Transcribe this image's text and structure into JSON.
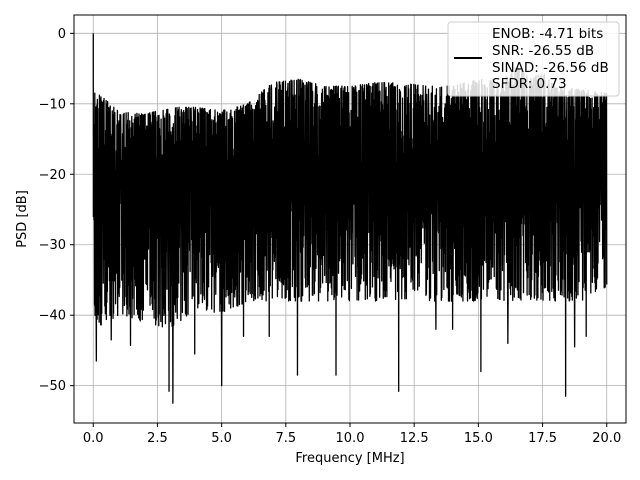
{
  "chart_data": {
    "type": "line",
    "title": "",
    "xlabel": "Frequency [MHz]",
    "ylabel": "PSD [dB]",
    "xlim": [
      -0.75,
      20.75
    ],
    "ylim": [
      -55.3,
      2.6
    ],
    "xticks": [
      0.0,
      2.5,
      5.0,
      7.5,
      10.0,
      12.5,
      15.0,
      17.5,
      20.0
    ],
    "xtick_labels": [
      "0.0",
      "2.5",
      "5.0",
      "7.5",
      "10.0",
      "12.5",
      "15.0",
      "17.5",
      "20.0"
    ],
    "yticks": [
      0,
      -10,
      -20,
      -30,
      -40,
      -50
    ],
    "ytick_labels": [
      "0",
      "−10",
      "−20",
      "−30",
      "−40",
      "−50"
    ],
    "grid": true,
    "legend_position": "top-right",
    "series": [
      {
        "name": "ENOB: -4.71 bits\nSNR: -26.55 dB\nSINAD: -26.56 dB\nSFDR: 0.73",
        "color": "#000000",
        "x_range": [
          0.0,
          20.0
        ],
        "spike_at_dc": 0.0,
        "upper_envelope": [
          [
            0.0,
            -8
          ],
          [
            1.0,
            -11
          ],
          [
            2.0,
            -11.5
          ],
          [
            3.0,
            -10.5
          ],
          [
            4.0,
            -10.5
          ],
          [
            5.0,
            -11
          ],
          [
            6.0,
            -10
          ],
          [
            7.0,
            -7
          ],
          [
            8.0,
            -6.5
          ],
          [
            9.0,
            -7.5
          ],
          [
            10.0,
            -7.5
          ],
          [
            11.0,
            -7
          ],
          [
            12.0,
            -7
          ],
          [
            13.0,
            -7.5
          ],
          [
            14.0,
            -7.5
          ],
          [
            15.0,
            -6.5
          ],
          [
            16.0,
            -6.5
          ],
          [
            16.5,
            -4.5
          ],
          [
            17.0,
            -6.5
          ],
          [
            17.5,
            -5.5
          ],
          [
            18.0,
            -7.5
          ],
          [
            19.0,
            -8
          ],
          [
            20.0,
            -8.5
          ]
        ],
        "lower_envelope": [
          [
            0.0,
            -42
          ],
          [
            1.0,
            -40
          ],
          [
            2.0,
            -41
          ],
          [
            3.0,
            -42
          ],
          [
            4.0,
            -39
          ],
          [
            5.0,
            -40
          ],
          [
            6.0,
            -38
          ],
          [
            7.0,
            -38
          ],
          [
            8.0,
            -38
          ],
          [
            9.0,
            -38
          ],
          [
            10.0,
            -38
          ],
          [
            11.0,
            -38
          ],
          [
            12.0,
            -38
          ],
          [
            13.0,
            -38
          ],
          [
            14.0,
            -38
          ],
          [
            15.0,
            -38
          ],
          [
            16.0,
            -38
          ],
          [
            17.0,
            -38
          ],
          [
            18.0,
            -38
          ],
          [
            19.0,
            -38
          ],
          [
            20.0,
            -36
          ]
        ],
        "deep_dips": [
          [
            0.12,
            -46.5
          ],
          [
            0.7,
            -43.5
          ],
          [
            1.45,
            -44.3
          ],
          [
            2.95,
            -50.8
          ],
          [
            3.1,
            -52.5
          ],
          [
            3.95,
            -45.5
          ],
          [
            5.0,
            -50
          ],
          [
            5.85,
            -43
          ],
          [
            6.85,
            -43
          ],
          [
            7.95,
            -48.5
          ],
          [
            9.45,
            -48.5
          ],
          [
            11.9,
            -50.8
          ],
          [
            13.35,
            -42
          ],
          [
            14.0,
            -42
          ],
          [
            15.1,
            -48
          ],
          [
            16.15,
            -44
          ],
          [
            18.4,
            -51.5
          ],
          [
            18.75,
            -44.5
          ],
          [
            19.2,
            -43
          ]
        ],
        "band_mean": -21,
        "band_std": 5.5,
        "approx_points": 2000
      }
    ]
  }
}
